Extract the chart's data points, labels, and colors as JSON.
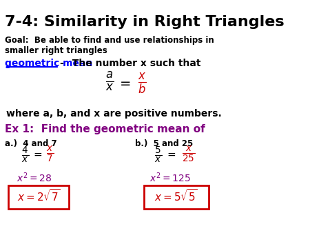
{
  "title": "7-4: Similarity in Right Triangles",
  "goal_text": "Goal:  Be able to find and use relationships in\nsmaller right triangles",
  "geo_mean_blue": "geometric mean ",
  "geo_mean_dash": "-",
  "geo_mean_rest": "  The number x such that",
  "where_text": "where a, b, and x are positive numbers.",
  "ex1_text": "Ex 1:  Find the geometric mean of",
  "a_label": "a.)  4 and 7",
  "b_label": "b.)  5 and 25",
  "bg_color": "#ffffff",
  "title_color": "#000000",
  "blue_color": "#0000ff",
  "purple_color": "#800080",
  "red_color": "#cc0000",
  "black_color": "#000000",
  "box_color": "#cc0000"
}
